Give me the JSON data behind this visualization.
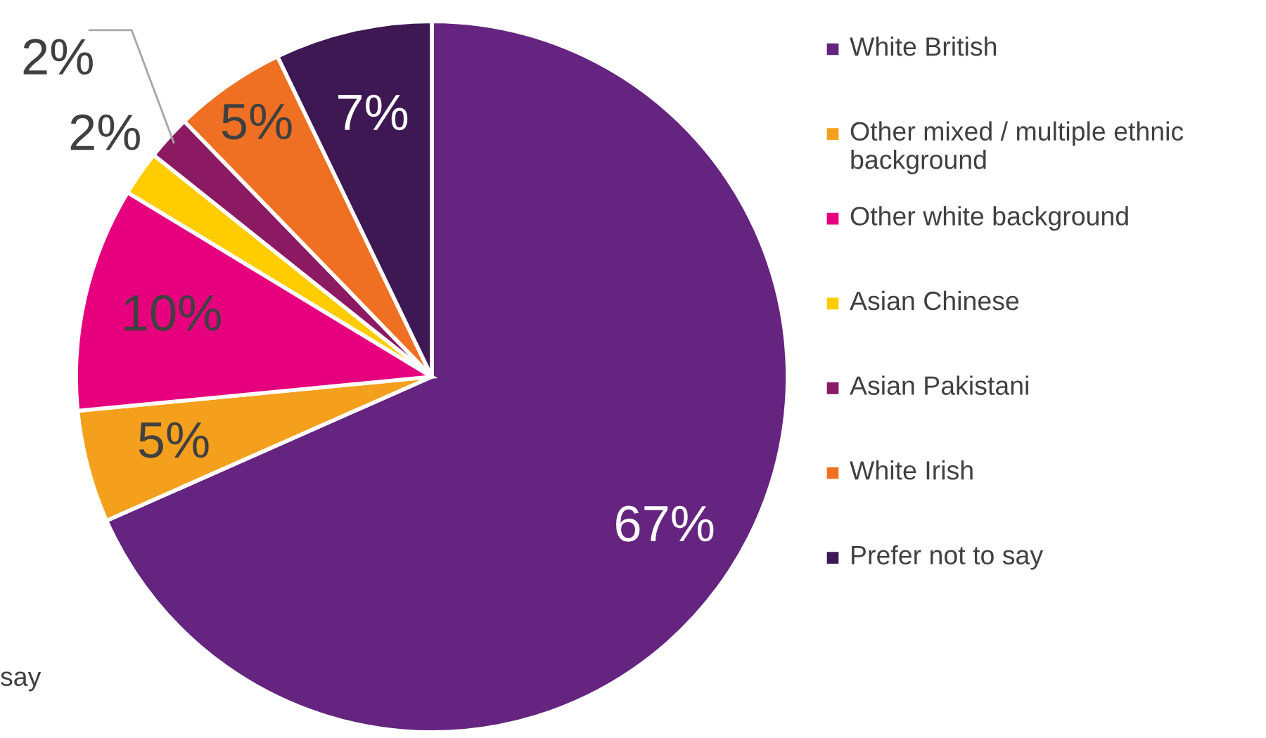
{
  "chart_data": {
    "type": "pie",
    "categories": [
      "White British",
      "Other mixed / multiple ethnic background",
      "Other white background",
      "Asian Chinese",
      "Asian Pakistani",
      "White Irish",
      "Prefer not to say"
    ],
    "values": [
      67,
      5,
      10,
      2,
      2,
      5,
      7
    ],
    "colors": [
      "#642480",
      "#f5a01d",
      "#e6007e",
      "#ffcc00",
      "#8b1a62",
      "#f07023",
      "#3d1852"
    ],
    "value_labels": [
      "67%",
      "5%",
      "10%",
      "2%",
      "2%",
      "5%",
      "7%"
    ],
    "legend": "right",
    "annotations": [
      "say"
    ]
  }
}
